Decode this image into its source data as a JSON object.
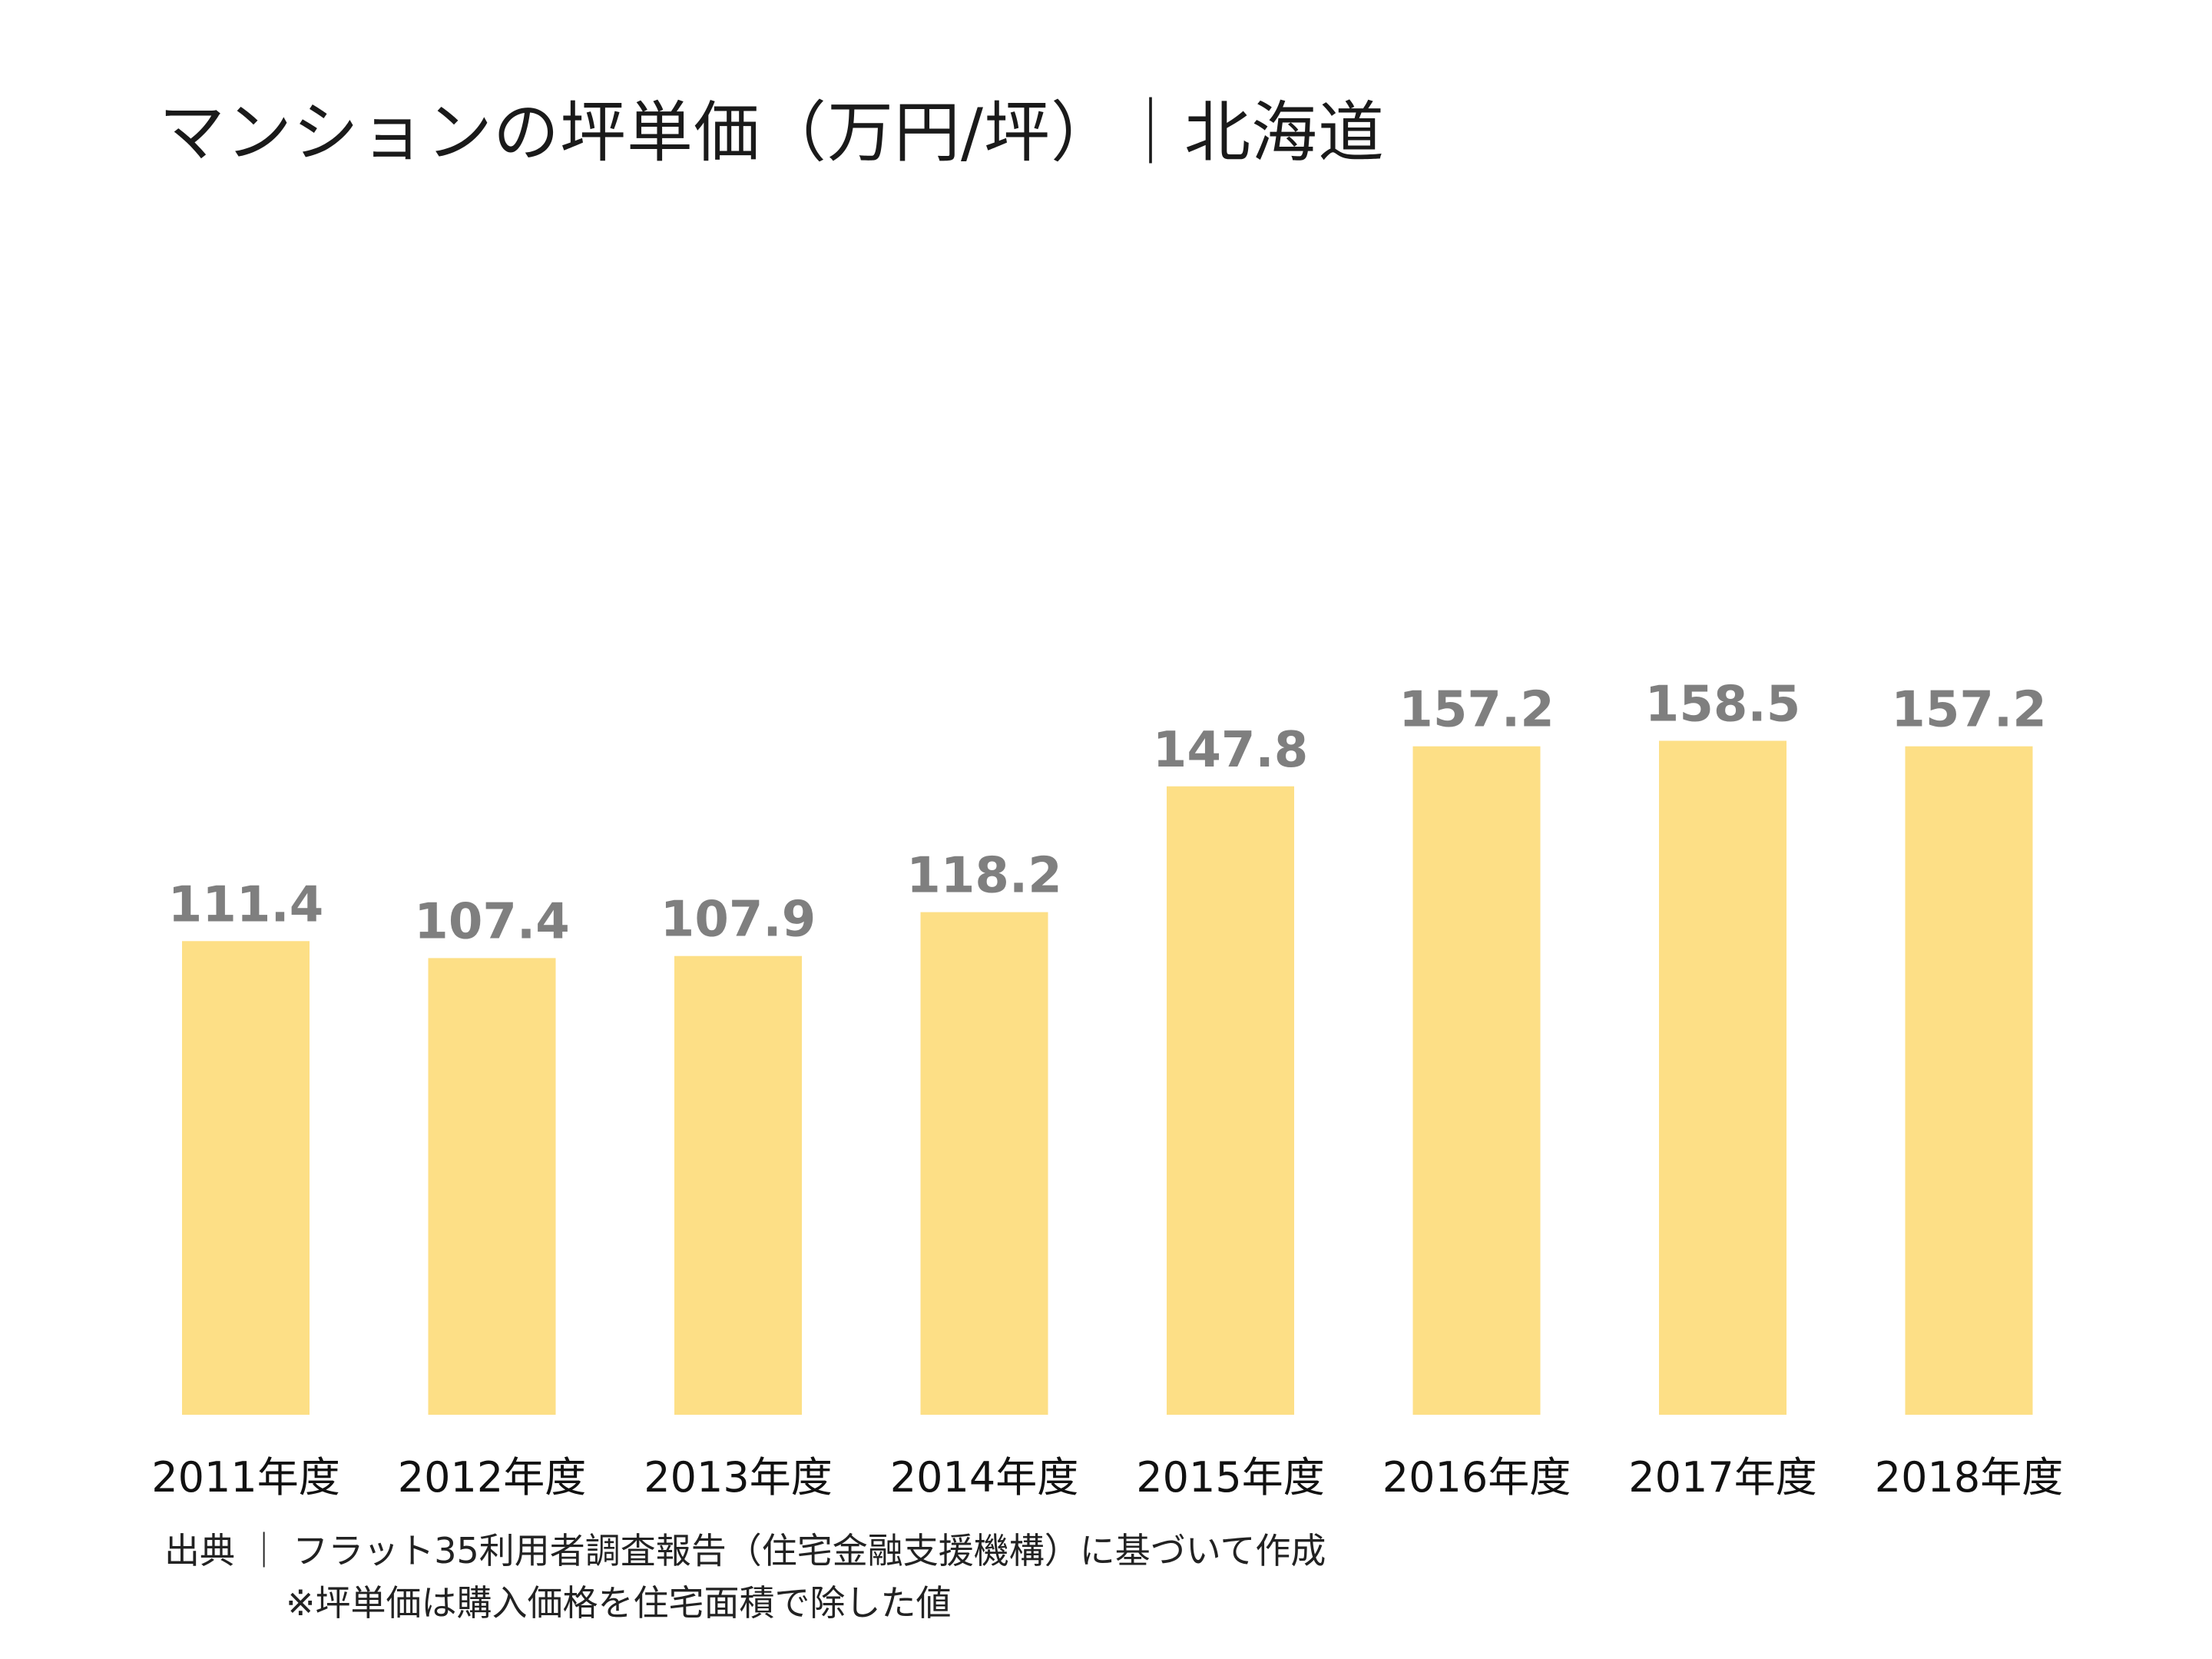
{
  "chart_data": {
    "type": "bar",
    "title": "マンションの坪単価（万円/坪）｜北海道",
    "categories": [
      "2011年度",
      "2012年度",
      "2013年度",
      "2014年度",
      "2015年度",
      "2016年度",
      "2017年度",
      "2018年度"
    ],
    "values": [
      111.4,
      107.4,
      107.9,
      118.2,
      147.8,
      157.2,
      158.5,
      157.2
    ],
    "data_labels": [
      "111.4",
      "107.4",
      "107.9",
      "118.2",
      "147.8",
      "157.2",
      "158.5",
      "157.2"
    ],
    "ylim": [
      0,
      220
    ],
    "grid": false,
    "legend": "none",
    "colors": {
      "bar": "#FDDF86",
      "data_label": "#7f7f7f",
      "tick_label": "#111111"
    }
  },
  "notes": {
    "source": "出典 ｜ フラット35利用者調査報告（住宅金融支援機構）に基づいて作成",
    "footnote": "※坪単価は購入価格を住宅面積で除した値"
  }
}
